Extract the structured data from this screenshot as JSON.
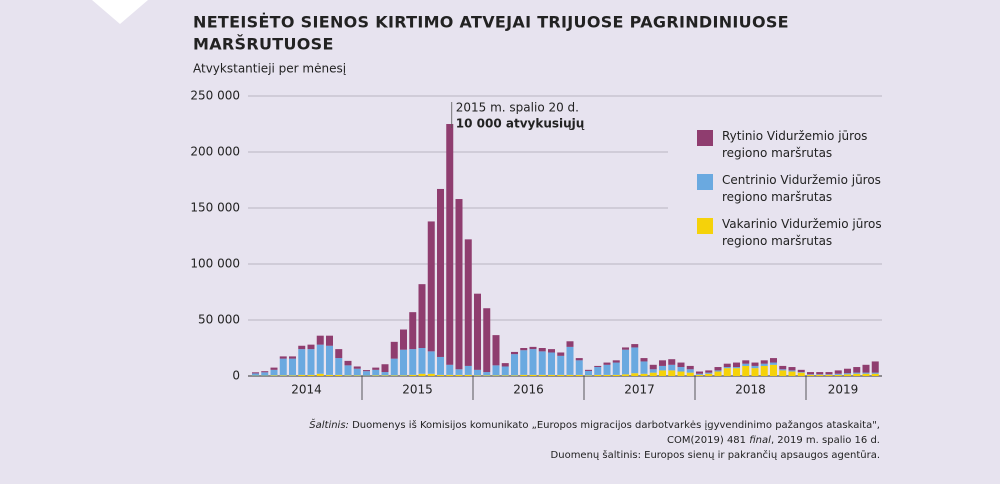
{
  "chart_data": {
    "type": "stacked-bar",
    "title": [
      "NETEISĖTO SIENOS KIRTIMO ATVEJAI TRIJUOSE PAGRINDINIUOSE",
      "MARŠRUTUOSE"
    ],
    "subtitle": "Atvykstantieji per mėnesį",
    "annotation": {
      "date": "2015 m. spalio 20 d.",
      "text": "10 000 atvykusiųjų",
      "color": "#8e3a6e"
    },
    "categories": [
      null,
      null,
      null,
      null,
      null,
      null,
      null,
      null,
      null,
      null,
      null,
      null,
      null,
      null,
      null,
      null,
      null,
      null,
      null,
      null,
      null,
      null,
      null,
      null,
      null,
      null,
      null,
      null,
      null,
      null,
      null,
      null,
      null,
      null,
      null,
      null,
      null,
      null,
      null,
      null,
      null,
      null,
      null,
      null,
      null,
      null,
      null,
      null,
      null,
      null,
      null,
      null,
      null,
      null,
      null,
      null,
      null,
      null,
      null,
      null,
      null,
      null,
      null,
      null,
      null,
      null,
      null,
      null
    ],
    "years": [
      "2014",
      "2015",
      "2016",
      "2017",
      "2018",
      "2019"
    ],
    "series": [
      {
        "name": "Rytinio Viduržemio jūros\nregiono maršrutas",
        "color": "#8f3d6f",
        "values": [
          1000,
          1000,
          2000,
          2000,
          2000,
          3000,
          4000,
          8000,
          9000,
          8000,
          4000,
          2000,
          1000,
          2000,
          7000,
          15000,
          18000,
          33000,
          57000,
          116000,
          150000,
          215000,
          152000,
          113000,
          68000,
          57000,
          27000,
          3000,
          2000,
          2000,
          2000,
          3000,
          3000,
          3000,
          5000,
          2000,
          1000,
          1000,
          2000,
          2000,
          2000,
          3000,
          3000,
          4000,
          5000,
          5000,
          4000,
          3000,
          2000,
          2000,
          3000,
          3000,
          4000,
          3000,
          3000,
          3000,
          4000,
          3000,
          3000,
          2000,
          2000,
          2000,
          2000,
          3000,
          4000,
          5000,
          7000,
          10000
        ]
      },
      {
        "name": "Centrinio Viduržemio jūros\nregiono maršrutas",
        "color": "#6aa9e0",
        "values": [
          2000,
          3000,
          5000,
          15000,
          15000,
          23000,
          23000,
          26000,
          26000,
          15000,
          9000,
          6000,
          4000,
          5000,
          3000,
          15000,
          23000,
          23000,
          23000,
          20000,
          16000,
          9000,
          5000,
          8000,
          5000,
          3000,
          9000,
          8000,
          19000,
          22000,
          23000,
          21000,
          20000,
          17000,
          25000,
          13000,
          4000,
          7000,
          9000,
          11000,
          22000,
          23000,
          11000,
          3000,
          4000,
          5000,
          4000,
          3000,
          1000,
          1000,
          1000,
          1000,
          1000,
          2000,
          2000,
          2000,
          2000,
          1000,
          1000,
          500,
          500,
          500,
          500,
          1000,
          1000,
          1000,
          1000,
          1000
        ]
      },
      {
        "name": "Vakarinio Viduržemio jūros\nregiono maršrutas",
        "color": "#f5d20a",
        "values": [
          300,
          300,
          500,
          500,
          500,
          1000,
          1000,
          2000,
          1000,
          1000,
          500,
          500,
          300,
          500,
          500,
          500,
          500,
          1000,
          2000,
          2000,
          1000,
          1000,
          1000,
          1000,
          500,
          500,
          500,
          500,
          500,
          1000,
          1000,
          1000,
          1000,
          1000,
          1000,
          1000,
          500,
          1000,
          1000,
          1000,
          1500,
          2500,
          2000,
          3000,
          5000,
          5000,
          4000,
          3000,
          1000,
          2000,
          4000,
          7000,
          7000,
          9000,
          7000,
          9000,
          10000,
          5000,
          4000,
          3000,
          1000,
          1000,
          1000,
          1000,
          1500,
          2000,
          2000,
          2000
        ]
      }
    ],
    "ylim": [
      0,
      250000
    ],
    "yticks": [
      0,
      {
        "value": 50000,
        "label": "50 000"
      },
      {
        "value": 100000,
        "label": "100 000"
      },
      {
        "value": 150000,
        "label": "150 000"
      },
      {
        "value": 200000,
        "label": "200 000"
      },
      {
        "value": 250000,
        "label": "250 000"
      }
    ],
    "grid": true
  },
  "source": {
    "label": "Šaltinis:",
    "line1": " Duomenys iš Komisijos komunikato „Europos migracijos darbotvarkės įgyvendinimo pažangos ataskaita\",",
    "line2a": "COM(2019) 481 ",
    "line2i": "final",
    "line2b": ", 2019 m. spalio 16 d.",
    "line3": "Duomenų šaltinis: Europos sienų ir pakrančių apsaugos agentūra."
  }
}
